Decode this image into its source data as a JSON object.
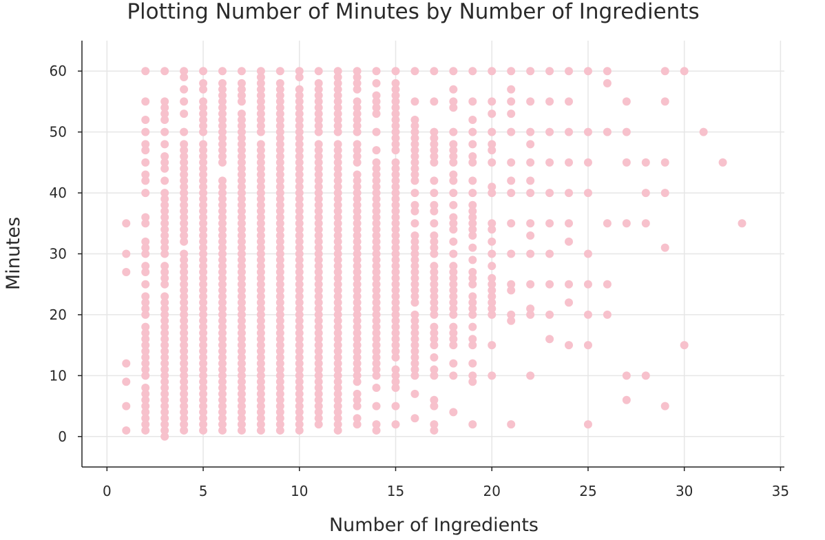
{
  "chart_data": {
    "type": "scatter",
    "title": "Plotting Number of Minutes by Number of Ingredients",
    "xlabel": "Number of Ingredients",
    "ylabel": "Minutes",
    "xlim": [
      -1.3,
      35.2
    ],
    "ylim": [
      -5,
      65
    ],
    "xticks": [
      0,
      5,
      10,
      15,
      20,
      25,
      30,
      35
    ],
    "yticks": [
      0,
      10,
      20,
      30,
      40,
      50,
      60
    ],
    "grid": true,
    "marker_color": "#f7c1cc",
    "columns": [
      {
        "x": 1,
        "y": [
          1,
          5,
          9,
          12,
          27,
          30,
          35
        ]
      },
      {
        "x": 2,
        "y": [
          1,
          2,
          3,
          4,
          5,
          6,
          7,
          8,
          10,
          11,
          12,
          13,
          14,
          15,
          16,
          17,
          18,
          20,
          21,
          22,
          23,
          25,
          27,
          28,
          30,
          31,
          32,
          35,
          36,
          40,
          42,
          43,
          45,
          47,
          48,
          50,
          52,
          55,
          60
        ]
      },
      {
        "x": 3,
        "y": [
          0,
          1,
          2,
          3,
          4,
          5,
          6,
          7,
          8,
          9,
          10,
          11,
          12,
          13,
          14,
          15,
          16,
          17,
          18,
          19,
          20,
          21,
          22,
          23,
          25,
          26,
          27,
          28,
          30,
          31,
          32,
          33,
          34,
          35,
          36,
          37,
          38,
          39,
          40,
          42,
          44,
          45,
          46,
          48,
          50,
          52,
          53,
          54,
          55,
          60
        ]
      },
      {
        "x": 4,
        "y": [
          1,
          2,
          3,
          4,
          5,
          6,
          7,
          8,
          9,
          10,
          11,
          12,
          13,
          14,
          15,
          16,
          17,
          18,
          19,
          20,
          21,
          22,
          23,
          24,
          25,
          26,
          27,
          28,
          29,
          30,
          32,
          33,
          34,
          35,
          36,
          37,
          38,
          39,
          40,
          41,
          42,
          43,
          44,
          45,
          46,
          47,
          48,
          50,
          53,
          55,
          57,
          59,
          60
        ]
      },
      {
        "x": 5,
        "y": [
          1,
          2,
          3,
          4,
          5,
          6,
          7,
          8,
          9,
          10,
          11,
          12,
          13,
          14,
          15,
          16,
          17,
          18,
          19,
          20,
          21,
          22,
          23,
          24,
          25,
          26,
          27,
          28,
          29,
          30,
          31,
          32,
          33,
          34,
          35,
          36,
          37,
          38,
          39,
          40,
          41,
          42,
          43,
          44,
          45,
          46,
          47,
          48,
          50,
          51,
          52,
          53,
          54,
          55,
          57,
          58,
          60
        ]
      },
      {
        "x": 6,
        "y": [
          1,
          2,
          3,
          4,
          5,
          6,
          7,
          8,
          9,
          10,
          11,
          12,
          13,
          14,
          15,
          16,
          17,
          18,
          19,
          20,
          21,
          22,
          23,
          24,
          25,
          26,
          27,
          28,
          29,
          30,
          31,
          32,
          33,
          34,
          35,
          36,
          37,
          38,
          39,
          40,
          41,
          42,
          45,
          46,
          47,
          48,
          49,
          50,
          51,
          52,
          53,
          54,
          55,
          56,
          57,
          58,
          60
        ]
      },
      {
        "x": 7,
        "y": [
          1,
          2,
          3,
          4,
          5,
          6,
          7,
          8,
          9,
          10,
          11,
          12,
          13,
          14,
          15,
          16,
          17,
          18,
          19,
          20,
          21,
          22,
          23,
          24,
          25,
          26,
          27,
          28,
          29,
          30,
          31,
          32,
          33,
          34,
          35,
          36,
          37,
          38,
          39,
          40,
          41,
          42,
          43,
          44,
          45,
          46,
          47,
          48,
          49,
          50,
          51,
          52,
          53,
          55,
          56,
          57,
          58,
          60
        ]
      },
      {
        "x": 8,
        "y": [
          1,
          2,
          3,
          4,
          5,
          6,
          7,
          8,
          9,
          10,
          11,
          12,
          13,
          14,
          15,
          16,
          17,
          18,
          19,
          20,
          21,
          22,
          23,
          24,
          25,
          26,
          27,
          28,
          29,
          30,
          31,
          32,
          33,
          34,
          35,
          36,
          37,
          38,
          39,
          40,
          41,
          42,
          43,
          44,
          45,
          46,
          47,
          48,
          50,
          51,
          52,
          53,
          54,
          55,
          56,
          57,
          58,
          59,
          60
        ]
      },
      {
        "x": 9,
        "y": [
          1,
          2,
          3,
          4,
          5,
          6,
          7,
          8,
          9,
          10,
          11,
          12,
          13,
          14,
          15,
          16,
          17,
          18,
          19,
          20,
          21,
          22,
          23,
          24,
          25,
          26,
          27,
          28,
          29,
          30,
          31,
          32,
          33,
          34,
          35,
          36,
          37,
          38,
          39,
          40,
          41,
          42,
          43,
          44,
          45,
          46,
          47,
          48,
          49,
          50,
          51,
          52,
          53,
          54,
          55,
          56,
          57,
          58,
          60
        ]
      },
      {
        "x": 10,
        "y": [
          1,
          2,
          3,
          4,
          5,
          6,
          7,
          8,
          9,
          10,
          11,
          12,
          13,
          14,
          15,
          16,
          17,
          18,
          19,
          20,
          21,
          22,
          23,
          24,
          25,
          26,
          27,
          28,
          29,
          30,
          31,
          32,
          33,
          34,
          35,
          36,
          37,
          38,
          39,
          40,
          41,
          42,
          43,
          44,
          45,
          46,
          47,
          48,
          49,
          50,
          51,
          52,
          53,
          54,
          55,
          56,
          57,
          59,
          60
        ]
      },
      {
        "x": 11,
        "y": [
          2,
          3,
          4,
          5,
          6,
          7,
          8,
          9,
          10,
          11,
          12,
          13,
          14,
          15,
          16,
          17,
          18,
          19,
          20,
          21,
          22,
          23,
          24,
          25,
          26,
          27,
          28,
          29,
          30,
          31,
          32,
          33,
          34,
          35,
          36,
          37,
          38,
          39,
          40,
          41,
          42,
          43,
          44,
          45,
          46,
          47,
          48,
          50,
          51,
          52,
          53,
          54,
          55,
          56,
          57,
          58,
          60
        ]
      },
      {
        "x": 12,
        "y": [
          1,
          2,
          3,
          4,
          5,
          6,
          7,
          8,
          9,
          10,
          11,
          12,
          13,
          14,
          15,
          16,
          17,
          18,
          19,
          20,
          21,
          22,
          23,
          24,
          25,
          26,
          27,
          28,
          29,
          30,
          31,
          32,
          33,
          34,
          35,
          36,
          37,
          38,
          39,
          40,
          41,
          42,
          43,
          44,
          45,
          46,
          47,
          48,
          50,
          51,
          52,
          53,
          54,
          55,
          56,
          57,
          58,
          59,
          60
        ]
      },
      {
        "x": 13,
        "y": [
          2,
          3,
          5,
          6,
          7,
          9,
          10,
          11,
          12,
          13,
          14,
          15,
          16,
          17,
          18,
          19,
          20,
          21,
          22,
          23,
          24,
          25,
          26,
          27,
          28,
          29,
          30,
          31,
          32,
          33,
          34,
          35,
          36,
          37,
          38,
          39,
          40,
          41,
          42,
          43,
          45,
          46,
          47,
          48,
          50,
          51,
          52,
          53,
          54,
          55,
          57,
          58,
          59,
          60
        ]
      },
      {
        "x": 14,
        "y": [
          1,
          2,
          5,
          8,
          10,
          11,
          12,
          13,
          14,
          15,
          16,
          17,
          18,
          19,
          20,
          21,
          22,
          23,
          24,
          25,
          26,
          27,
          28,
          29,
          30,
          31,
          32,
          33,
          34,
          35,
          36,
          37,
          38,
          39,
          40,
          41,
          42,
          43,
          44,
          45,
          47,
          50,
          53,
          54,
          55,
          56,
          58,
          60
        ]
      },
      {
        "x": 15,
        "y": [
          2,
          5,
          8,
          9,
          10,
          11,
          13,
          14,
          15,
          16,
          17,
          18,
          19,
          20,
          21,
          22,
          23,
          24,
          25,
          26,
          27,
          28,
          29,
          30,
          31,
          32,
          33,
          34,
          35,
          36,
          37,
          38,
          39,
          40,
          41,
          42,
          43,
          44,
          45,
          47,
          48,
          49,
          50,
          51,
          52,
          53,
          54,
          55,
          56,
          57,
          58,
          60
        ]
      },
      {
        "x": 16,
        "y": [
          3,
          7,
          10,
          11,
          12,
          13,
          14,
          15,
          16,
          17,
          18,
          19,
          20,
          22,
          23,
          24,
          25,
          26,
          27,
          28,
          29,
          30,
          31,
          32,
          33,
          35,
          37,
          38,
          40,
          42,
          43,
          44,
          45,
          46,
          47,
          48,
          49,
          50,
          51,
          52,
          55,
          60
        ]
      },
      {
        "x": 17,
        "y": [
          1,
          2,
          5,
          6,
          10,
          11,
          13,
          15,
          16,
          17,
          18,
          20,
          21,
          22,
          23,
          24,
          25,
          26,
          27,
          28,
          30,
          31,
          32,
          33,
          35,
          37,
          38,
          40,
          42,
          45,
          46,
          47,
          48,
          49,
          50,
          55,
          60
        ]
      },
      {
        "x": 18,
        "y": [
          4,
          10,
          12,
          15,
          16,
          17,
          18,
          20,
          21,
          22,
          23,
          24,
          25,
          26,
          27,
          28,
          30,
          32,
          34,
          35,
          36,
          38,
          40,
          42,
          43,
          45,
          46,
          47,
          48,
          50,
          54,
          55,
          57,
          60
        ]
      },
      {
        "x": 19,
        "y": [
          2,
          9,
          10,
          12,
          15,
          16,
          18,
          20,
          21,
          22,
          23,
          25,
          26,
          27,
          29,
          31,
          33,
          34,
          35,
          36,
          37,
          38,
          40,
          42,
          45,
          46,
          48,
          50,
          52,
          55,
          60
        ]
      },
      {
        "x": 20,
        "y": [
          10,
          15,
          20,
          21,
          22,
          23,
          24,
          25,
          26,
          28,
          30,
          32,
          34,
          35,
          40,
          41,
          45,
          47,
          48,
          50,
          53,
          55,
          60
        ]
      },
      {
        "x": 21,
        "y": [
          2,
          19,
          20,
          24,
          25,
          30,
          35,
          40,
          42,
          45,
          50,
          53,
          55,
          57,
          60
        ]
      },
      {
        "x": 22,
        "y": [
          10,
          20,
          21,
          25,
          30,
          33,
          35,
          40,
          42,
          45,
          48,
          50,
          55,
          60
        ]
      },
      {
        "x": 23,
        "y": [
          16,
          20,
          25,
          30,
          35,
          40,
          45,
          50,
          55,
          60
        ]
      },
      {
        "x": 24,
        "y": [
          15,
          22,
          25,
          32,
          35,
          40,
          45,
          50,
          55,
          60
        ]
      },
      {
        "x": 25,
        "y": [
          2,
          15,
          20,
          25,
          30,
          40,
          45,
          50,
          60
        ]
      },
      {
        "x": 26,
        "y": [
          20,
          25,
          35,
          50,
          58,
          60
        ]
      },
      {
        "x": 27,
        "y": [
          6,
          10,
          35,
          45,
          50,
          55
        ]
      },
      {
        "x": 28,
        "y": [
          10,
          35,
          40,
          45
        ]
      },
      {
        "x": 29,
        "y": [
          5,
          31,
          40,
          45,
          55,
          60
        ]
      },
      {
        "x": 30,
        "y": [
          15,
          60
        ]
      },
      {
        "x": 31,
        "y": [
          50
        ]
      },
      {
        "x": 32,
        "y": [
          45
        ]
      },
      {
        "x": 33,
        "y": [
          35
        ]
      }
    ]
  }
}
